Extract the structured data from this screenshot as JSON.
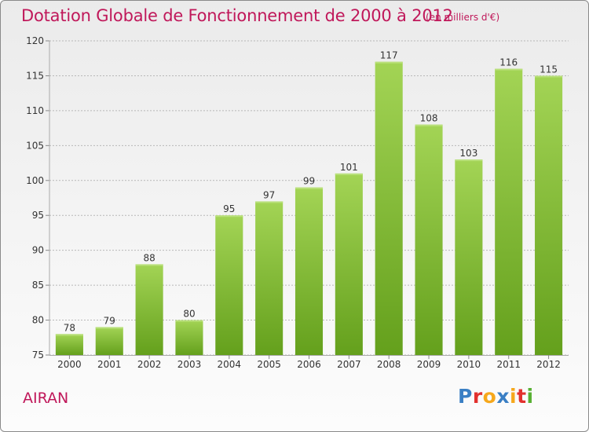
{
  "header": {
    "title": "Dotation Globale de Fonctionnement de 2000 à 2012",
    "subtitle": "(en milliers d'€)"
  },
  "footer": {
    "place": "AIRAN",
    "logo_text": "Proxiti",
    "logo_colors": [
      "#3a7fc4",
      "#e2312e",
      "#f6a81c",
      "#3a7fc4",
      "#f6a81c",
      "#e2312e",
      "#58b033"
    ]
  },
  "chart_data": {
    "type": "bar",
    "title": "Dotation Globale de Fonctionnement de 2000 à 2012",
    "subtitle": "(en milliers d'€)",
    "categories": [
      "2000",
      "2001",
      "2002",
      "2003",
      "2004",
      "2005",
      "2006",
      "2007",
      "2008",
      "2009",
      "2010",
      "2011",
      "2012"
    ],
    "values": [
      78,
      79,
      88,
      80,
      95,
      97,
      99,
      101,
      117,
      108,
      103,
      116,
      115
    ],
    "xlabel": "",
    "ylabel": "",
    "ylim": [
      75,
      120
    ],
    "yticks": [
      75,
      80,
      85,
      90,
      95,
      100,
      105,
      110,
      115,
      120
    ],
    "grid": true,
    "bar_color_top": "#a3d455",
    "bar_color_bottom": "#64a01c"
  }
}
